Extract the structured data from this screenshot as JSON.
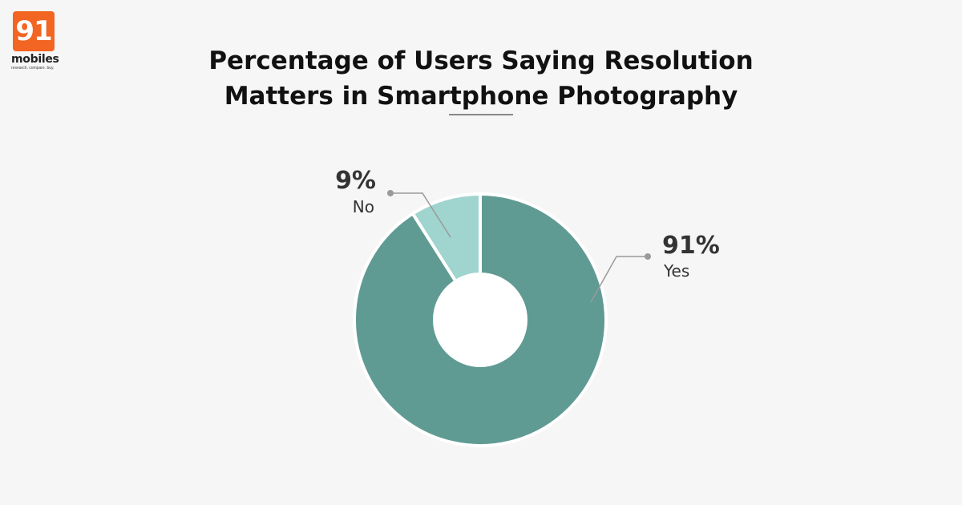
{
  "brand": {
    "number": "91",
    "word": "mobiles",
    "tagline": "research. compare. buy.",
    "color": "#f26522"
  },
  "chart_data": {
    "type": "pie",
    "variant": "donut",
    "title_lines": [
      "Percentage of Users Saying Resolution",
      "Matters in Smartphone Photography"
    ],
    "categories": [
      "Yes",
      "No"
    ],
    "values": [
      91,
      9
    ],
    "labels": [
      "91%",
      "9%"
    ],
    "colors": [
      "#5f9b93",
      "#a0d4cf"
    ],
    "legend": "none"
  }
}
